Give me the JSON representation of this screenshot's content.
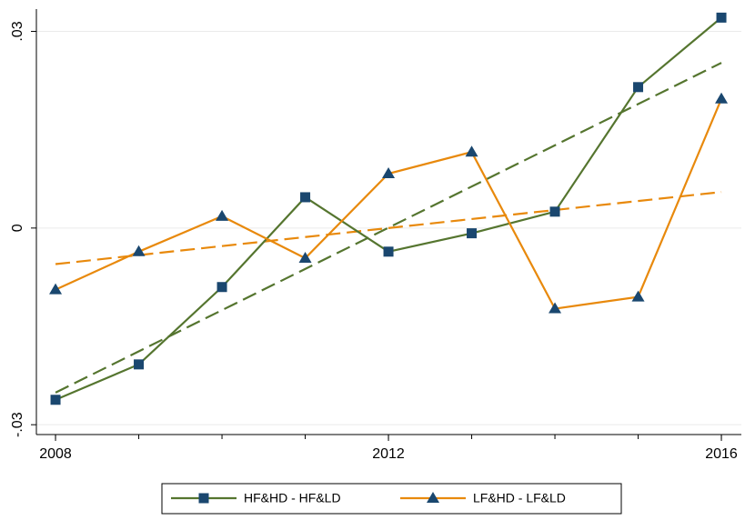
{
  "chart_data": {
    "type": "line",
    "x": [
      2008,
      2009,
      2010,
      2011,
      2012,
      2013,
      2014,
      2015,
      2016
    ],
    "xlim": [
      2007.77,
      2016.24
    ],
    "xticks": [
      2008,
      2012,
      2016
    ],
    "ylim": [
      -0.0315,
      0.0334
    ],
    "yticks": [
      {
        "value": 0.03,
        "label": ".03"
      },
      0,
      {
        "value": -0.03,
        "label": "-.03"
      }
    ],
    "grid": true,
    "marker_color": "#1a476f",
    "series": [
      {
        "name": "HF&HD - HF&LD",
        "color": "#55752f",
        "marker": "square",
        "values": [
          -0.0262,
          -0.0208,
          -0.009,
          0.0047,
          -0.0036,
          -0.0008,
          0.0025,
          0.0215,
          0.0321
        ],
        "trend": {
          "x": [
            2008,
            2016
          ],
          "values": [
            -0.0251,
            0.0252
          ]
        }
      },
      {
        "name": "LF&HD - LF&LD",
        "color": "#e8890c",
        "marker": "triangle",
        "values": [
          -0.0094,
          -0.0036,
          0.0018,
          -0.0046,
          0.0083,
          0.0116,
          -0.0123,
          -0.0105,
          0.0197
        ],
        "trend": {
          "x": [
            2008,
            2016
          ],
          "values": [
            -0.0055,
            0.0055
          ]
        }
      }
    ]
  }
}
